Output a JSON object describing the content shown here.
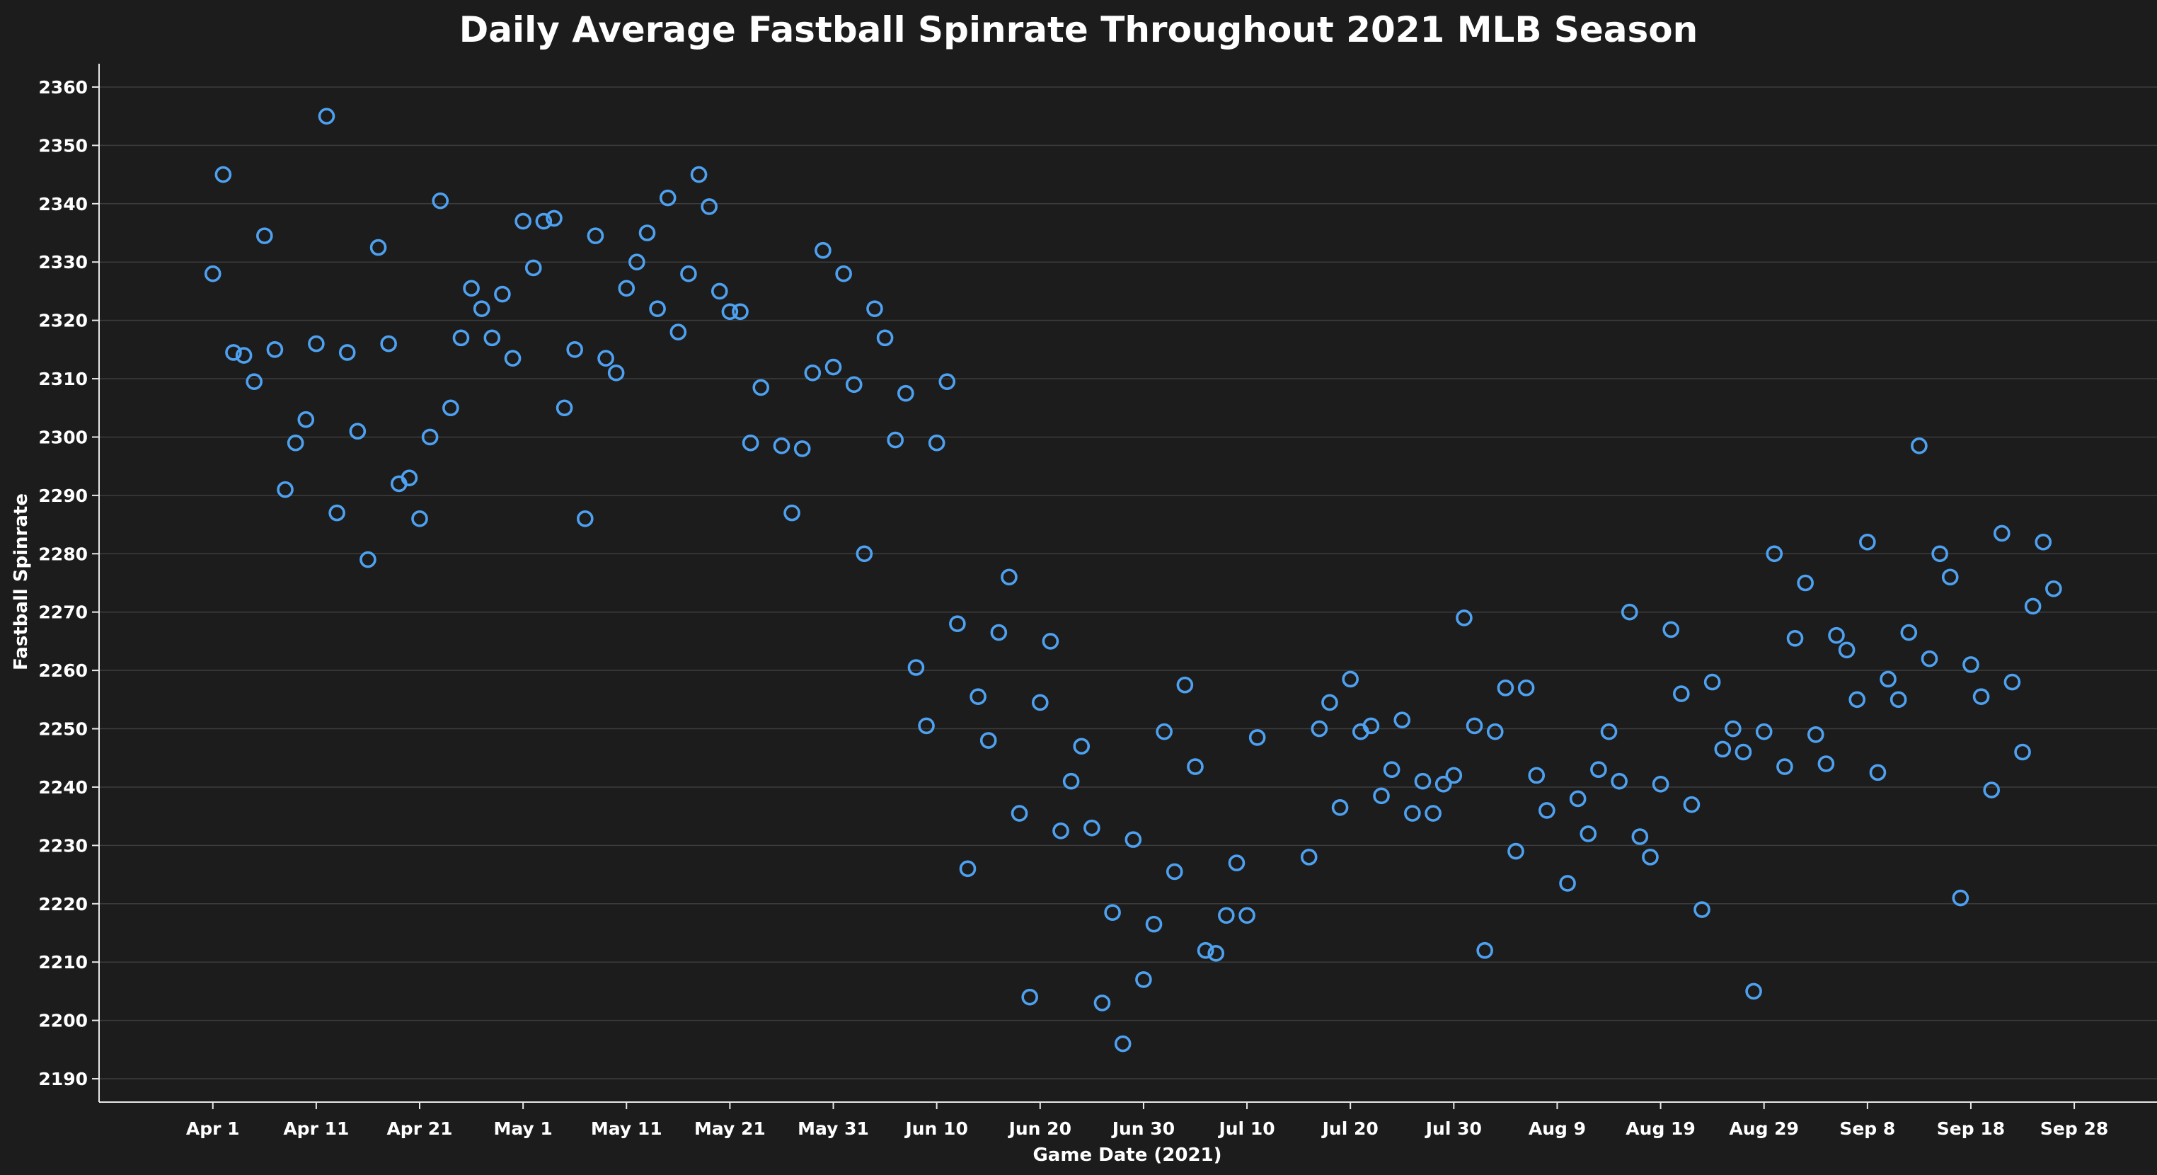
{
  "chart_data": {
    "type": "scatter",
    "title": "Daily Average Fastball Spinrate Throughout 2021 MLB Season",
    "xlabel": "Game Date (2021)",
    "ylabel": "Fastball Spinrate",
    "x_type": "date",
    "xlim": [
      "2021-03-21",
      "2021-10-06"
    ],
    "ylim": [
      2186,
      2364
    ],
    "grid": "horizontal",
    "marker": "hollow-circle",
    "color": "#4ea1f0",
    "yticks": [
      2190,
      2200,
      2210,
      2220,
      2230,
      2240,
      2250,
      2260,
      2270,
      2280,
      2290,
      2300,
      2310,
      2320,
      2330,
      2340,
      2350,
      2360
    ],
    "xticks": [
      {
        "date": "2021-04-01",
        "label": "Apr 1"
      },
      {
        "date": "2021-04-11",
        "label": "Apr 11"
      },
      {
        "date": "2021-04-21",
        "label": "Apr 21"
      },
      {
        "date": "2021-05-01",
        "label": "May 1"
      },
      {
        "date": "2021-05-11",
        "label": "May 11"
      },
      {
        "date": "2021-05-21",
        "label": "May 21"
      },
      {
        "date": "2021-05-31",
        "label": "May 31"
      },
      {
        "date": "2021-06-10",
        "label": "Jun 10"
      },
      {
        "date": "2021-06-20",
        "label": "Jun 20"
      },
      {
        "date": "2021-06-30",
        "label": "Jun 30"
      },
      {
        "date": "2021-07-10",
        "label": "Jul 10"
      },
      {
        "date": "2021-07-20",
        "label": "Jul 20"
      },
      {
        "date": "2021-07-30",
        "label": "Jul 30"
      },
      {
        "date": "2021-08-09",
        "label": "Aug 9"
      },
      {
        "date": "2021-08-19",
        "label": "Aug 19"
      },
      {
        "date": "2021-08-29",
        "label": "Aug 29"
      },
      {
        "date": "2021-09-08",
        "label": "Sep 8"
      },
      {
        "date": "2021-09-18",
        "label": "Sep 18"
      },
      {
        "date": "2021-09-28",
        "label": "Sep 28"
      }
    ],
    "points": [
      [
        "2021-04-01",
        2328
      ],
      [
        "2021-04-02",
        2345
      ],
      [
        "2021-04-03",
        2314.5
      ],
      [
        "2021-04-04",
        2314
      ],
      [
        "2021-04-05",
        2309.5
      ],
      [
        "2021-04-06",
        2334.5
      ],
      [
        "2021-04-07",
        2315
      ],
      [
        "2021-04-08",
        2291
      ],
      [
        "2021-04-09",
        2299
      ],
      [
        "2021-04-10",
        2303
      ],
      [
        "2021-04-11",
        2316
      ],
      [
        "2021-04-12",
        2355
      ],
      [
        "2021-04-13",
        2287
      ],
      [
        "2021-04-14",
        2314.5
      ],
      [
        "2021-04-15",
        2301
      ],
      [
        "2021-04-16",
        2279
      ],
      [
        "2021-04-17",
        2332.5
      ],
      [
        "2021-04-18",
        2316
      ],
      [
        "2021-04-19",
        2292
      ],
      [
        "2021-04-20",
        2293
      ],
      [
        "2021-04-21",
        2286
      ],
      [
        "2021-04-22",
        2300
      ],
      [
        "2021-04-23",
        2340.5
      ],
      [
        "2021-04-24",
        2305
      ],
      [
        "2021-04-25",
        2317
      ],
      [
        "2021-04-26",
        2325.5
      ],
      [
        "2021-04-27",
        2322
      ],
      [
        "2021-04-28",
        2317
      ],
      [
        "2021-04-29",
        2324.5
      ],
      [
        "2021-04-30",
        2313.5
      ],
      [
        "2021-05-01",
        2337
      ],
      [
        "2021-05-02",
        2329
      ],
      [
        "2021-05-03",
        2337
      ],
      [
        "2021-05-04",
        2337.5
      ],
      [
        "2021-05-05",
        2305
      ],
      [
        "2021-05-06",
        2315
      ],
      [
        "2021-05-07",
        2286
      ],
      [
        "2021-05-08",
        2334.5
      ],
      [
        "2021-05-09",
        2313.5
      ],
      [
        "2021-05-10",
        2311
      ],
      [
        "2021-05-11",
        2325.5
      ],
      [
        "2021-05-12",
        2330
      ],
      [
        "2021-05-13",
        2335
      ],
      [
        "2021-05-14",
        2322
      ],
      [
        "2021-05-15",
        2341
      ],
      [
        "2021-05-16",
        2318
      ],
      [
        "2021-05-17",
        2328
      ],
      [
        "2021-05-18",
        2345
      ],
      [
        "2021-05-19",
        2339.5
      ],
      [
        "2021-05-20",
        2325
      ],
      [
        "2021-05-21",
        2321.5
      ],
      [
        "2021-05-22",
        2321.5
      ],
      [
        "2021-05-23",
        2299
      ],
      [
        "2021-05-24",
        2308.5
      ],
      [
        "2021-05-26",
        2298.5
      ],
      [
        "2021-05-27",
        2287
      ],
      [
        "2021-05-28",
        2298
      ],
      [
        "2021-05-29",
        2311
      ],
      [
        "2021-05-30",
        2332
      ],
      [
        "2021-05-31",
        2312
      ],
      [
        "2021-06-01",
        2328
      ],
      [
        "2021-06-02",
        2309
      ],
      [
        "2021-06-03",
        2280
      ],
      [
        "2021-06-04",
        2322
      ],
      [
        "2021-06-05",
        2317
      ],
      [
        "2021-06-06",
        2299.5
      ],
      [
        "2021-06-07",
        2307.5
      ],
      [
        "2021-06-08",
        2260.5
      ],
      [
        "2021-06-09",
        2250.5
      ],
      [
        "2021-06-10",
        2299
      ],
      [
        "2021-06-11",
        2309.5
      ],
      [
        "2021-06-12",
        2268
      ],
      [
        "2021-06-13",
        2226
      ],
      [
        "2021-06-14",
        2255.5
      ],
      [
        "2021-06-15",
        2248
      ],
      [
        "2021-06-16",
        2266.5
      ],
      [
        "2021-06-17",
        2276
      ],
      [
        "2021-06-18",
        2235.5
      ],
      [
        "2021-06-19",
        2204
      ],
      [
        "2021-06-20",
        2254.5
      ],
      [
        "2021-06-21",
        2265
      ],
      [
        "2021-06-22",
        2232.5
      ],
      [
        "2021-06-23",
        2241
      ],
      [
        "2021-06-24",
        2247
      ],
      [
        "2021-06-25",
        2233
      ],
      [
        "2021-06-26",
        2203
      ],
      [
        "2021-06-27",
        2218.5
      ],
      [
        "2021-06-28",
        2196
      ],
      [
        "2021-06-29",
        2231
      ],
      [
        "2021-06-30",
        2207
      ],
      [
        "2021-07-01",
        2216.5
      ],
      [
        "2021-07-02",
        2249.5
      ],
      [
        "2021-07-03",
        2225.5
      ],
      [
        "2021-07-04",
        2257.5
      ],
      [
        "2021-07-05",
        2243.5
      ],
      [
        "2021-07-06",
        2212
      ],
      [
        "2021-07-07",
        2211.5
      ],
      [
        "2021-07-08",
        2218
      ],
      [
        "2021-07-09",
        2227
      ],
      [
        "2021-07-10",
        2218
      ],
      [
        "2021-07-11",
        2248.5
      ],
      [
        "2021-07-16",
        2228
      ],
      [
        "2021-07-17",
        2250
      ],
      [
        "2021-07-18",
        2254.5
      ],
      [
        "2021-07-19",
        2236.5
      ],
      [
        "2021-07-20",
        2258.5
      ],
      [
        "2021-07-21",
        2249.5
      ],
      [
        "2021-07-22",
        2250.5
      ],
      [
        "2021-07-23",
        2238.5
      ],
      [
        "2021-07-24",
        2243
      ],
      [
        "2021-07-25",
        2251.5
      ],
      [
        "2021-07-26",
        2235.5
      ],
      [
        "2021-07-27",
        2241
      ],
      [
        "2021-07-28",
        2235.5
      ],
      [
        "2021-07-29",
        2240.5
      ],
      [
        "2021-07-30",
        2242
      ],
      [
        "2021-07-31",
        2269
      ],
      [
        "2021-08-01",
        2250.5
      ],
      [
        "2021-08-02",
        2212
      ],
      [
        "2021-08-03",
        2249.5
      ],
      [
        "2021-08-04",
        2257
      ],
      [
        "2021-08-05",
        2229
      ],
      [
        "2021-08-06",
        2257
      ],
      [
        "2021-08-07",
        2242
      ],
      [
        "2021-08-08",
        2236
      ],
      [
        "2021-08-10",
        2223.5
      ],
      [
        "2021-08-11",
        2238
      ],
      [
        "2021-08-12",
        2232
      ],
      [
        "2021-08-13",
        2243
      ],
      [
        "2021-08-14",
        2249.5
      ],
      [
        "2021-08-15",
        2241
      ],
      [
        "2021-08-16",
        2270
      ],
      [
        "2021-08-17",
        2231.5
      ],
      [
        "2021-08-18",
        2228
      ],
      [
        "2021-08-19",
        2240.5
      ],
      [
        "2021-08-20",
        2267
      ],
      [
        "2021-08-21",
        2256
      ],
      [
        "2021-08-22",
        2237
      ],
      [
        "2021-08-23",
        2219
      ],
      [
        "2021-08-24",
        2258
      ],
      [
        "2021-08-25",
        2246.5
      ],
      [
        "2021-08-26",
        2250
      ],
      [
        "2021-08-27",
        2246
      ],
      [
        "2021-08-28",
        2205
      ],
      [
        "2021-08-29",
        2249.5
      ],
      [
        "2021-08-30",
        2280
      ],
      [
        "2021-08-31",
        2243.5
      ],
      [
        "2021-09-01",
        2265.5
      ],
      [
        "2021-09-02",
        2275
      ],
      [
        "2021-09-03",
        2249
      ],
      [
        "2021-09-04",
        2244
      ],
      [
        "2021-09-05",
        2266
      ],
      [
        "2021-09-06",
        2263.5
      ],
      [
        "2021-09-07",
        2255
      ],
      [
        "2021-09-08",
        2282
      ],
      [
        "2021-09-09",
        2242.5
      ],
      [
        "2021-09-10",
        2258.5
      ],
      [
        "2021-09-11",
        2255
      ],
      [
        "2021-09-12",
        2266.5
      ],
      [
        "2021-09-13",
        2298.5
      ],
      [
        "2021-09-14",
        2262
      ],
      [
        "2021-09-15",
        2280
      ],
      [
        "2021-09-16",
        2276
      ],
      [
        "2021-09-17",
        2221
      ],
      [
        "2021-09-18",
        2261
      ],
      [
        "2021-09-19",
        2255.5
      ],
      [
        "2021-09-20",
        2239.5
      ],
      [
        "2021-09-21",
        2283.5
      ],
      [
        "2021-09-22",
        2258
      ],
      [
        "2021-09-23",
        2246
      ],
      [
        "2021-09-24",
        2271
      ],
      [
        "2021-09-25",
        2282
      ],
      [
        "2021-09-26",
        2274
      ]
    ]
  }
}
